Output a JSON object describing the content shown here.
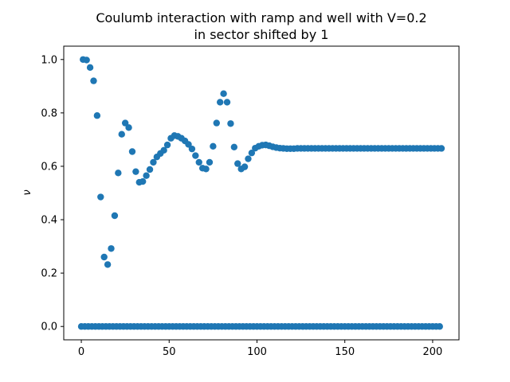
{
  "chart_data": {
    "type": "scatter",
    "title_line1": "Coulumb interaction with ramp and well with V=0.2",
    "title_line2": "in sector shifted by 1",
    "xlabel": "",
    "ylabel": "ν",
    "xlim": [
      -10,
      215
    ],
    "ylim": [
      -0.05,
      1.05
    ],
    "x_ticks": [
      0,
      50,
      100,
      150,
      200
    ],
    "x_tick_labels": [
      "0",
      "50",
      "100",
      "150",
      "200"
    ],
    "y_ticks": [
      0.0,
      0.2,
      0.4,
      0.6,
      0.8,
      1.0
    ],
    "y_tick_labels": [
      "0.0",
      "0.2",
      "0.4",
      "0.6",
      "0.8",
      "1.0"
    ],
    "grid": false,
    "marker_color": "#1f77b4",
    "series": [
      {
        "x": [
          1,
          3,
          5,
          7,
          9,
          11,
          13,
          15,
          17,
          19,
          21,
          23,
          25,
          27,
          29,
          31,
          33,
          35,
          37,
          39,
          41,
          43,
          45,
          47,
          49,
          51,
          53,
          55,
          57,
          59,
          61,
          63,
          65,
          67,
          69,
          71,
          73,
          75,
          77,
          79,
          81,
          83,
          85,
          87,
          89,
          91,
          93,
          95,
          97,
          99,
          101,
          103,
          105,
          107,
          109,
          111,
          113,
          115,
          117,
          119,
          121,
          123,
          125,
          127,
          129,
          131,
          133,
          135,
          137,
          139,
          141,
          143,
          145,
          147,
          149,
          151,
          153,
          155,
          157,
          159,
          161,
          163,
          165,
          167,
          169,
          171,
          173,
          175,
          177,
          179,
          181,
          183,
          185,
          187,
          189,
          191,
          193,
          195,
          197,
          199,
          201,
          203,
          205
        ],
        "y": [
          1.0,
          0.998,
          0.97,
          0.92,
          0.79,
          0.485,
          0.26,
          0.232,
          0.292,
          0.415,
          0.575,
          0.72,
          0.762,
          0.745,
          0.655,
          0.58,
          0.54,
          0.543,
          0.565,
          0.588,
          0.615,
          0.635,
          0.648,
          0.66,
          0.68,
          0.705,
          0.715,
          0.712,
          0.705,
          0.695,
          0.682,
          0.665,
          0.64,
          0.615,
          0.593,
          0.59,
          0.615,
          0.675,
          0.762,
          0.84,
          0.872,
          0.84,
          0.76,
          0.672,
          0.61,
          0.59,
          0.598,
          0.628,
          0.65,
          0.668,
          0.675,
          0.679,
          0.68,
          0.677,
          0.673,
          0.67,
          0.668,
          0.667,
          0.666,
          0.666,
          0.666,
          0.667,
          0.667,
          0.667,
          0.667,
          0.667,
          0.667,
          0.667,
          0.667,
          0.667,
          0.667,
          0.667,
          0.667,
          0.667,
          0.667,
          0.667,
          0.667,
          0.667,
          0.667,
          0.667,
          0.667,
          0.667,
          0.667,
          0.667,
          0.667,
          0.667,
          0.667,
          0.667,
          0.667,
          0.667,
          0.667,
          0.667,
          0.667,
          0.667,
          0.667,
          0.667,
          0.667,
          0.667,
          0.667,
          0.667,
          0.667,
          0.667,
          0.667
        ]
      },
      {
        "x": [
          0,
          2,
          4,
          6,
          8,
          10,
          12,
          14,
          16,
          18,
          20,
          22,
          24,
          26,
          28,
          30,
          32,
          34,
          36,
          38,
          40,
          42,
          44,
          46,
          48,
          50,
          52,
          54,
          56,
          58,
          60,
          62,
          64,
          66,
          68,
          70,
          72,
          74,
          76,
          78,
          80,
          82,
          84,
          86,
          88,
          90,
          92,
          94,
          96,
          98,
          100,
          102,
          104,
          106,
          108,
          110,
          112,
          114,
          116,
          118,
          120,
          122,
          124,
          126,
          128,
          130,
          132,
          134,
          136,
          138,
          140,
          142,
          144,
          146,
          148,
          150,
          152,
          154,
          156,
          158,
          160,
          162,
          164,
          166,
          168,
          170,
          172,
          174,
          176,
          178,
          180,
          182,
          184,
          186,
          188,
          190,
          192,
          194,
          196,
          198,
          200,
          202,
          204
        ],
        "y": [
          0,
          0,
          0,
          0,
          0,
          0,
          0,
          0,
          0,
          0,
          0,
          0,
          0,
          0,
          0,
          0,
          0,
          0,
          0,
          0,
          0,
          0,
          0,
          0,
          0,
          0,
          0,
          0,
          0,
          0,
          0,
          0,
          0,
          0,
          0,
          0,
          0,
          0,
          0,
          0,
          0,
          0,
          0,
          0,
          0,
          0,
          0,
          0,
          0,
          0,
          0,
          0,
          0,
          0,
          0,
          0,
          0,
          0,
          0,
          0,
          0,
          0,
          0,
          0,
          0,
          0,
          0,
          0,
          0,
          0,
          0,
          0,
          0,
          0,
          0,
          0,
          0,
          0,
          0,
          0,
          0,
          0,
          0,
          0,
          0,
          0,
          0,
          0,
          0,
          0,
          0,
          0,
          0,
          0,
          0,
          0,
          0,
          0,
          0,
          0,
          0,
          0,
          0
        ]
      }
    ]
  }
}
